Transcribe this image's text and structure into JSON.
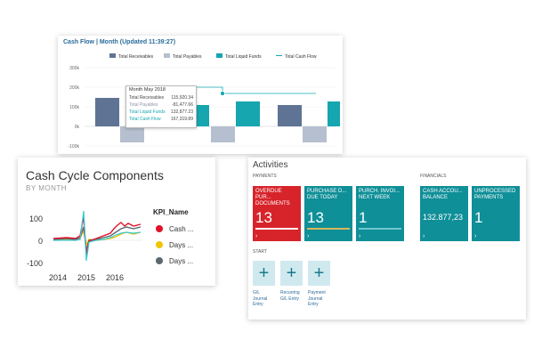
{
  "cash_flow": {
    "title": "Cash Flow | Month (Updated 11:39:27)",
    "legend": [
      {
        "label": "Total Receivables",
        "color": "#5f7494"
      },
      {
        "label": "Total Payables",
        "color": "#b5bfcf"
      },
      {
        "label": "Total Liquid Funds",
        "color": "#15a6b0"
      },
      {
        "label": "Total Cash Flow",
        "color": "#15a6b0"
      }
    ],
    "y_ticks": [
      "300k",
      "200k",
      "100k",
      "0k",
      "-100k"
    ],
    "tooltip": {
      "header": "Month May 2018",
      "rows": [
        {
          "label": "Total Receivables",
          "value": "115,920.34",
          "color": "#444444"
        },
        {
          "label": "Total Payables",
          "value": "-81,477.66",
          "color": "#8c96a8"
        },
        {
          "label": "Total Liquid Funds",
          "value": "132,877.23",
          "color": "#15a6b0"
        },
        {
          "label": "Total Cash Flow",
          "value": "167,319.89",
          "color": "#15a6b0"
        }
      ]
    }
  },
  "chart_data": {
    "type": "bar",
    "title": "Cash Flow | Month (Updated 11:39:27)",
    "ylim": [
      -100000,
      300000
    ],
    "groups": [
      {
        "receivables": 105000,
        "payables": -55000
      },
      {
        "receivables": 115920.34,
        "payables": -81477.66,
        "liquid": 132877.23
      },
      {
        "receivables": 105000,
        "payables": -55000,
        "liquid": 132877.23
      },
      {
        "receivables": 105000,
        "payables": -55000,
        "liquid": 132877.23
      }
    ]
  },
  "cycle": {
    "title": "Cash Cycle Components",
    "subtitle": "BY MONTH",
    "y_ticks": [
      "100",
      "0",
      "-100"
    ],
    "x_ticks": [
      "2014",
      "2015",
      "2016"
    ],
    "legend_title": "KPI_Name",
    "legend": [
      {
        "label": "Cash ...",
        "color": "#e0132a"
      },
      {
        "label": "Days ...",
        "color": "#f1c400"
      },
      {
        "label": "Days ...",
        "color": "#5c6870"
      }
    ]
  },
  "activities": {
    "title": "Activities",
    "payments_label": "PAYMENTS",
    "financials_label": "FINANCIALS",
    "start_label": "START",
    "tiles": [
      {
        "label": "OVERDUE PUR... DOCUMENTS",
        "value": "13",
        "color": "#d7242b",
        "bar": "#ffffff"
      },
      {
        "label": "PURCHASE D... DUE TODAY",
        "value": "13",
        "color": "#0f8f98",
        "bar": "#d8b85a"
      },
      {
        "label": "PURCH. INVOI... NEXT WEEK",
        "value": "1",
        "color": "#0f8f98",
        "bar": "#6fc8cd"
      },
      {
        "label": "CASH ACCOU... BALANCE",
        "value": "132.877,23",
        "color": "#0f8f98",
        "bar": ""
      },
      {
        "label": "UNPROCESSED PAYMENTS",
        "value": "1",
        "color": "#0f8f98",
        "bar": ""
      }
    ],
    "actions": [
      {
        "label": "G/L Journal Entry",
        "icon": "plus-icon"
      },
      {
        "label": "Recurring G/L Entry",
        "icon": "plus-icon"
      },
      {
        "label": "Payment Journal Entry",
        "icon": "plus-icon"
      }
    ],
    "arrow": "›"
  }
}
